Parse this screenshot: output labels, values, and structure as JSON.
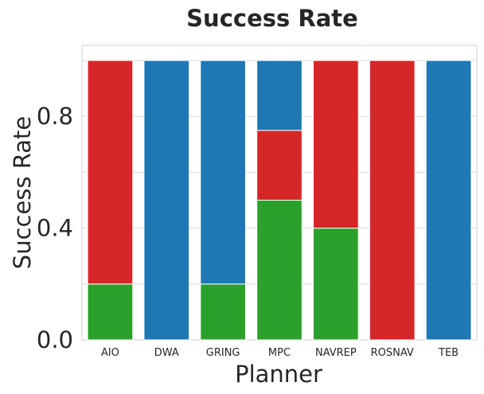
{
  "chart_data": {
    "type": "bar",
    "stacked": true,
    "title": "Success Rate",
    "xlabel": "Planner",
    "ylabel": "Success Rate",
    "ylim": [
      0,
      1.02
    ],
    "yticks": [
      "0.0",
      "0.4",
      "0.8"
    ],
    "ytick_values": [
      0.0,
      0.4,
      0.8
    ],
    "grid": true,
    "categories": [
      "AIO",
      "DWA",
      "GRING",
      "MPC",
      "NAVREP",
      "ROSNAV",
      "TEB"
    ],
    "series": [
      {
        "color": "#2ca02c",
        "values": [
          0.2,
          0.0,
          0.2,
          0.5,
          0.4,
          0.0,
          0.0
        ]
      },
      {
        "color": "#d62728",
        "values": [
          0.8,
          0.0,
          0.0,
          0.25,
          0.6,
          1.0,
          0.0
        ]
      },
      {
        "color": "#1f77b4",
        "values": [
          0.0,
          1.0,
          0.8,
          0.25,
          0.0,
          0.0,
          1.0
        ]
      }
    ]
  }
}
